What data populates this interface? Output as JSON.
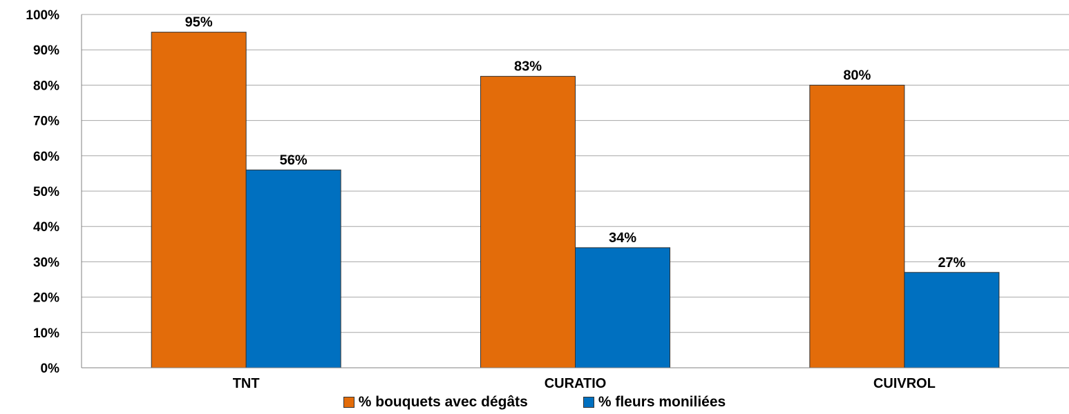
{
  "colors": {
    "series_1": "#E36C0A",
    "series_2": "#0070C0",
    "gridline": "#A6A6A6",
    "axis": "#808080",
    "bar_border": "#333333"
  },
  "chart_data": {
    "type": "bar",
    "categories": [
      "TNT",
      "CURATIO",
      "CUIVROL"
    ],
    "series": [
      {
        "name": "% bouquets avec dégâts",
        "values": [
          95,
          82.5,
          80
        ],
        "labels": [
          "95%",
          "83%",
          "80%"
        ]
      },
      {
        "name": "% fleurs moniliées",
        "values": [
          56,
          34,
          27
        ],
        "labels": [
          "56%",
          "34%",
          "27%"
        ]
      }
    ],
    "title": "",
    "xlabel": "",
    "ylabel": "",
    "ylim": [
      0,
      100
    ],
    "yticks": [
      "0%",
      "10%",
      "20%",
      "30%",
      "40%",
      "50%",
      "60%",
      "70%",
      "80%",
      "90%",
      "100%"
    ],
    "grid": true,
    "legend": "bottom"
  }
}
